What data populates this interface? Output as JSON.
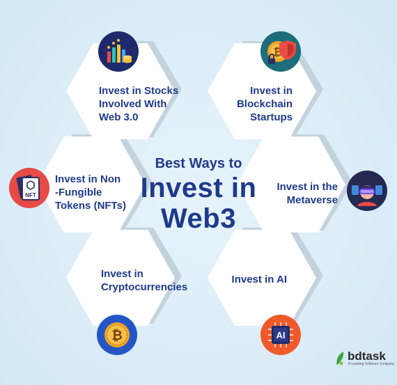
{
  "title": {
    "line1": "Best Ways to",
    "line2": "Invest in",
    "line3": "Web3"
  },
  "ways": [
    {
      "lines": [
        "Invest in Stocks",
        "Involved With",
        "Web 3.0"
      ],
      "icon": "bar-chart-coins-icon"
    },
    {
      "lines": [
        "Invest in",
        "Blockchain",
        "Startups"
      ],
      "icon": "bitcoin-shield-icon"
    },
    {
      "lines": [
        "Invest in Non",
        "-Fungible",
        "Tokens (NFTs)"
      ],
      "icon": "nft-cards-icon"
    },
    {
      "lines": [
        "Invest in the",
        "Metaverse"
      ],
      "icon": "vr-headset-icon"
    },
    {
      "lines": [
        "Invest in",
        "Cryptocurrencies"
      ],
      "icon": "bitcoin-coin-icon"
    },
    {
      "lines": [
        "Invest in AI"
      ],
      "icon": "ai-chip-icon"
    }
  ],
  "ai_chip_text": "AI",
  "nft_text": "NFT",
  "logo": {
    "name": "bdtask",
    "tagline": "A Leading Software Company"
  },
  "colors": {
    "text": "#1f3a8a",
    "background": "#dcedf8",
    "icon_navy": "#1e2a6b",
    "icon_teal": "#1b6e7a",
    "icon_red": "#e84b45",
    "icon_blue": "#2457c5",
    "icon_dark": "#242a52",
    "icon_orange": "#f05a2a"
  }
}
